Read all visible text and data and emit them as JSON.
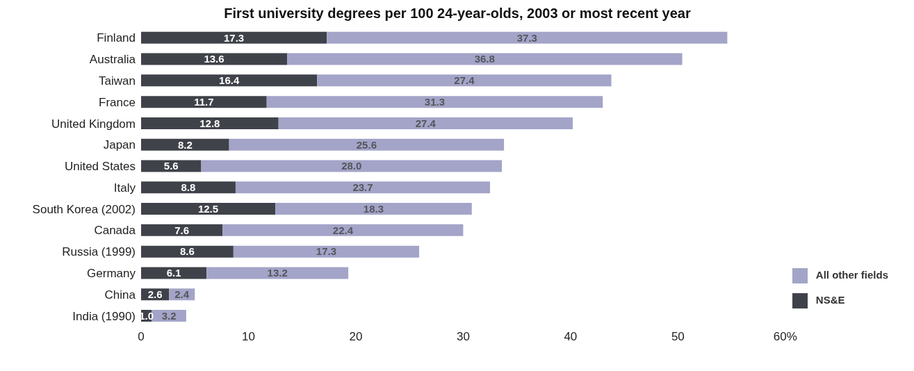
{
  "chart_data": {
    "type": "bar",
    "orientation": "horizontal",
    "stacked": true,
    "title": "First university degrees per 100 24-year-olds, 2003 or most recent year",
    "categories": [
      "Finland",
      "Australia",
      "Taiwan",
      "France",
      "United Kingdom",
      "Japan",
      "United States",
      "Italy",
      "South Korea (2002)",
      "Canada",
      "Russia (1999)",
      "Germany",
      "China",
      "India (1990)"
    ],
    "series": [
      {
        "name": "NS&E",
        "color": "#3f4249",
        "values": [
          17.3,
          13.6,
          16.4,
          11.7,
          12.8,
          8.2,
          5.6,
          8.8,
          12.5,
          7.6,
          8.6,
          6.1,
          2.6,
          1.0
        ],
        "value_labels": [
          "17.3",
          "13.6",
          "16.4",
          "11.7",
          "12.8",
          "8.2",
          "5.6",
          "8.8",
          "12.5",
          "7.6",
          "8.6",
          "6.1",
          "2.6",
          "1.0"
        ]
      },
      {
        "name": "All other fields",
        "color": "#a3a4c8",
        "values": [
          37.3,
          36.8,
          27.4,
          31.3,
          27.4,
          25.6,
          28.0,
          23.7,
          18.3,
          22.4,
          17.3,
          13.2,
          2.4,
          3.2
        ],
        "value_labels": [
          "37.3",
          "36.8",
          "27.4",
          "31.3",
          "27.4",
          "25.6",
          "28.0",
          "23.7",
          "18.3",
          "22.4",
          "17.3",
          "13.2",
          "2.4",
          "3.2"
        ]
      }
    ],
    "xlim": [
      0,
      60
    ],
    "xticks": [
      0,
      10,
      20,
      30,
      40,
      50,
      {
        "value": 60,
        "label": "60%"
      }
    ],
    "grid": false,
    "legend": "bottom right"
  }
}
